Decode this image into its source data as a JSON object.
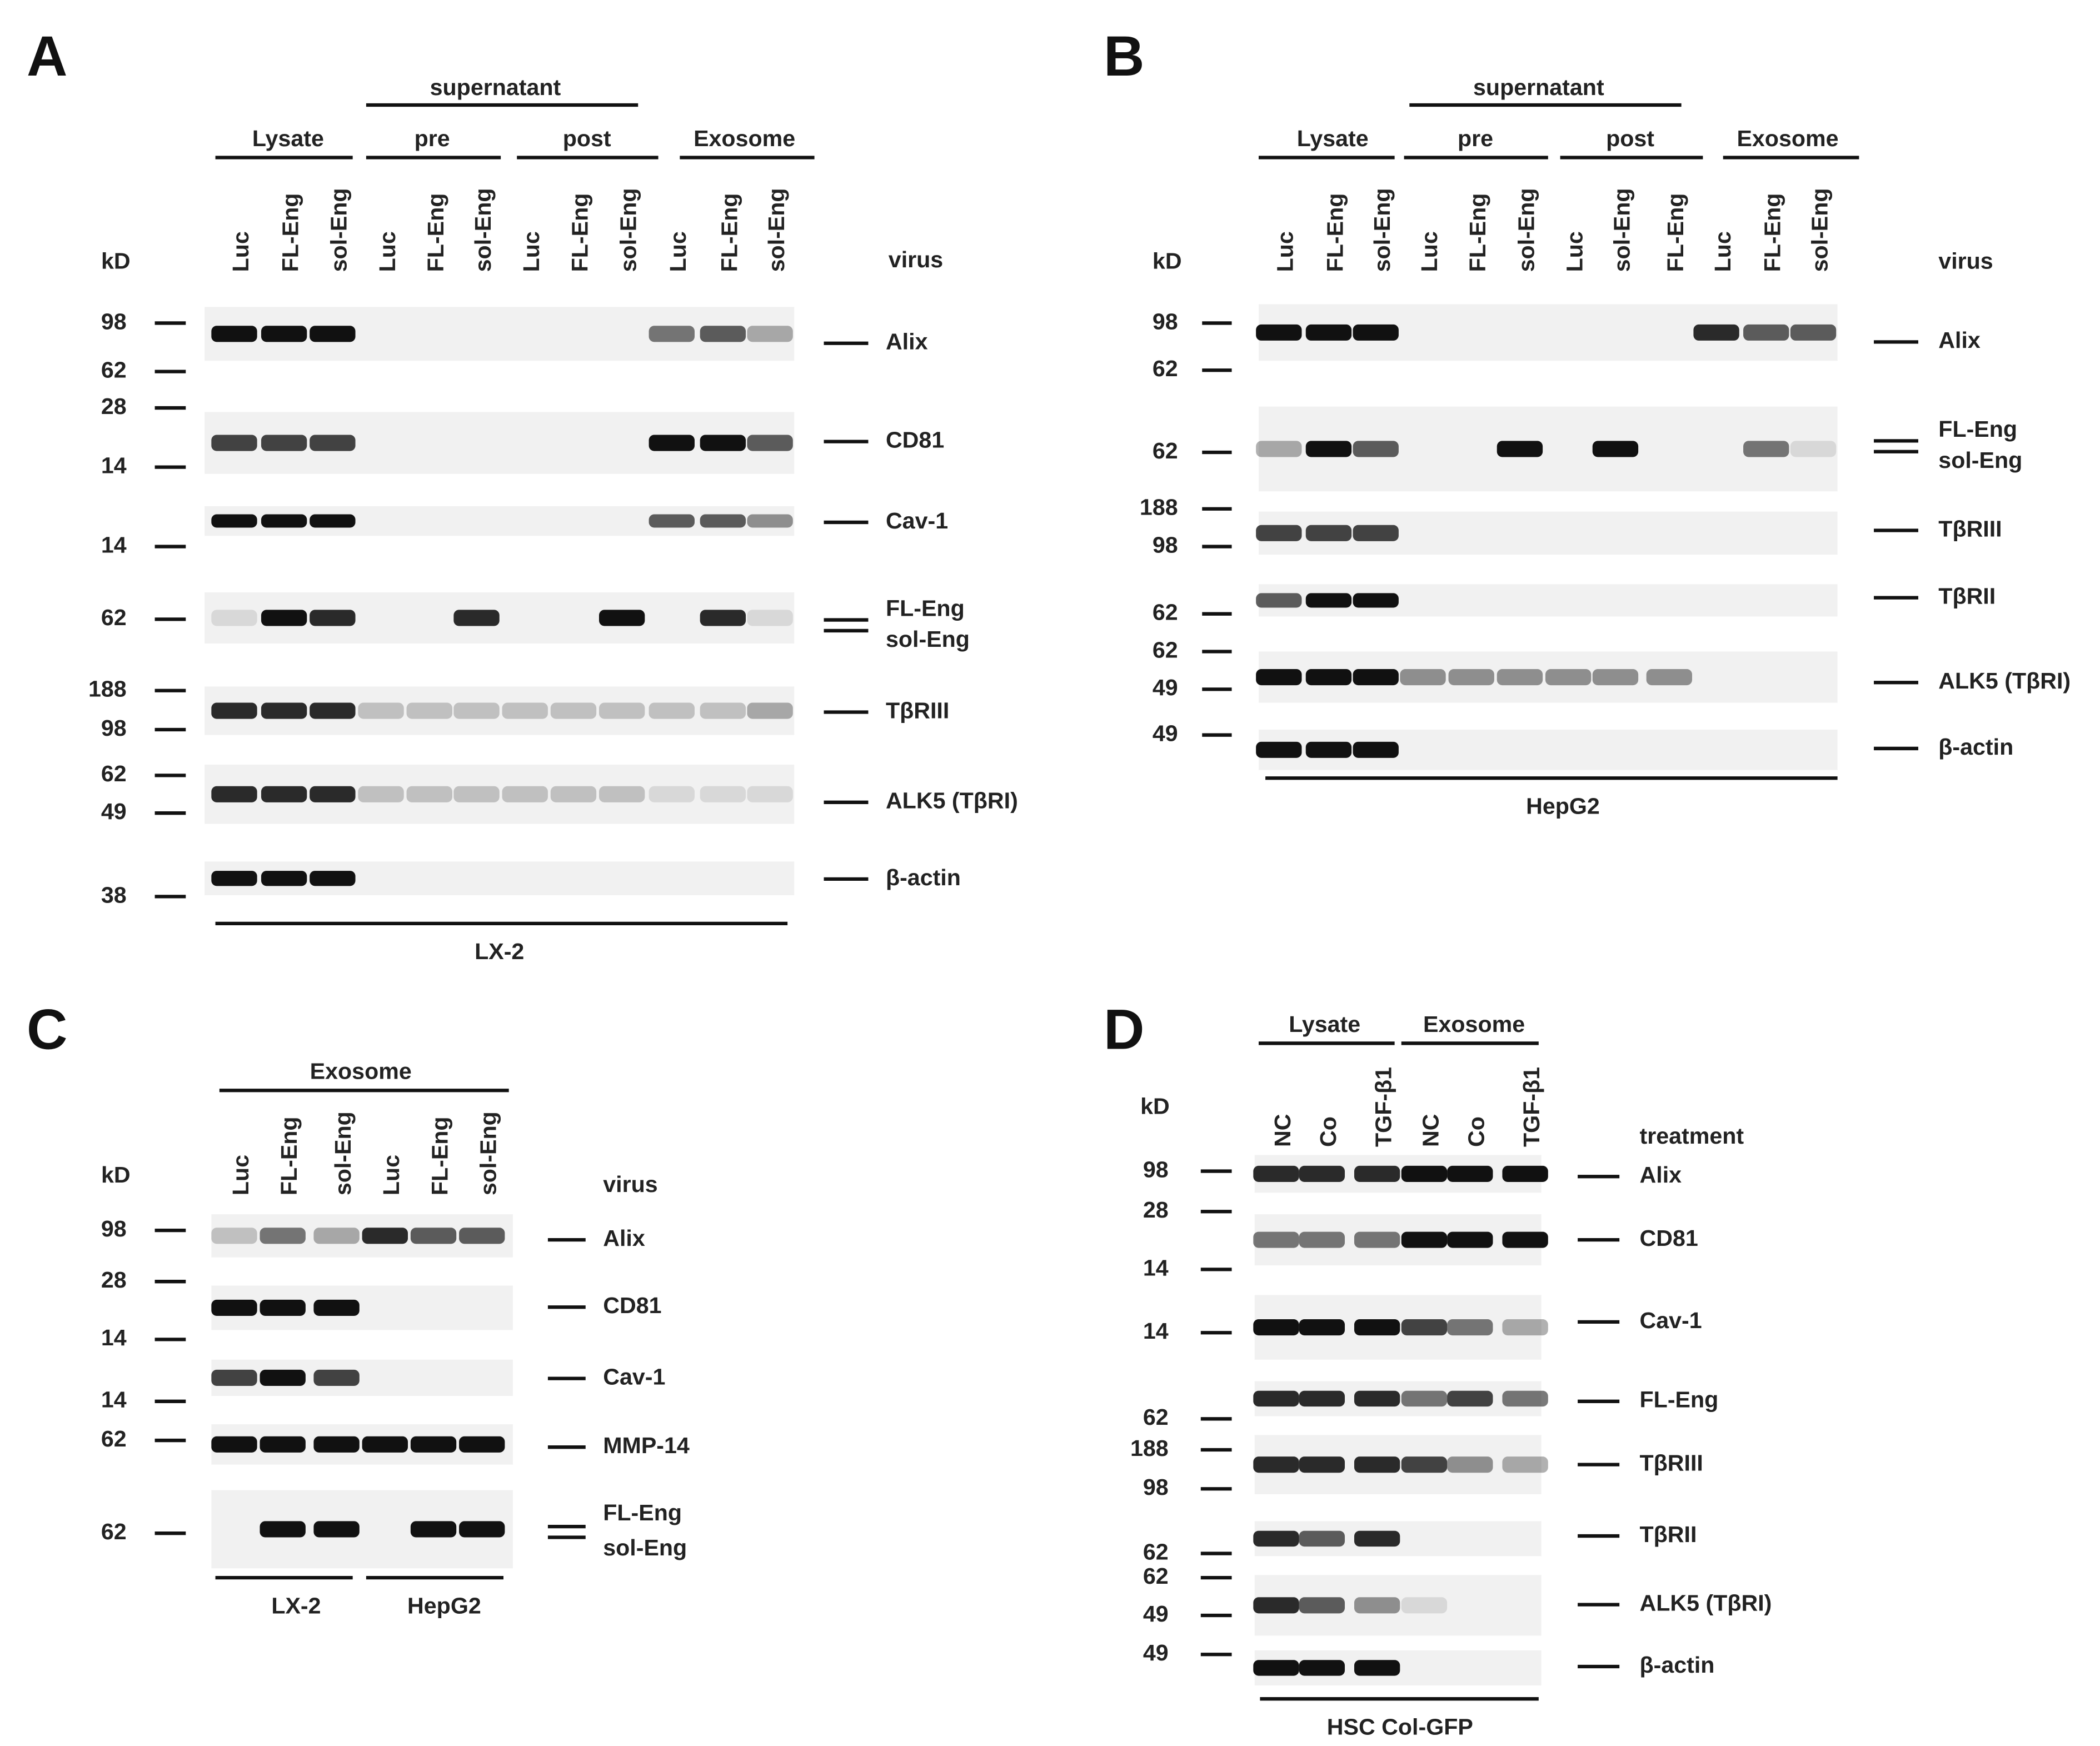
{
  "panels": [
    {
      "label": "A",
      "super_header": "supernatant",
      "groups": [
        "Lysate",
        "pre",
        "post",
        "Exosome"
      ],
      "kd_header": "kD",
      "lane_caption": "virus",
      "lanes": [
        "Luc",
        "FL-Eng",
        "sol-Eng",
        "Luc",
        "FL-Eng",
        "sol-Eng",
        "Luc",
        "FL-Eng",
        "sol-Eng",
        "Luc",
        "FL-Eng",
        "sol-Eng"
      ],
      "rows": [
        {
          "markers": [
            98,
            62
          ],
          "labels": [
            "Alix"
          ]
        },
        {
          "markers": [
            28,
            14
          ],
          "labels": [
            "CD81"
          ]
        },
        {
          "markers": [
            14
          ],
          "labels": [
            "Cav-1"
          ]
        },
        {
          "markers": [
            62
          ],
          "labels": [
            "FL-Eng",
            "sol-Eng"
          ]
        },
        {
          "markers": [
            188,
            98
          ],
          "labels": [
            "TβRIII"
          ]
        },
        {
          "markers": [
            62,
            49
          ],
          "labels": [
            "ALK5 (TβRI)"
          ]
        },
        {
          "markers": [
            38
          ],
          "labels": [
            "β-actin"
          ]
        }
      ],
      "footers": [
        "LX-2"
      ]
    },
    {
      "label": "B",
      "super_header": "supernatant",
      "groups": [
        "Lysate",
        "pre",
        "post",
        "Exosome"
      ],
      "kd_header": "kD",
      "lane_caption": "virus",
      "lanes": [
        "Luc",
        "FL-Eng",
        "sol-Eng",
        "Luc",
        "FL-Eng",
        "sol-Eng",
        "Luc",
        "sol-Eng",
        "FL-Eng",
        "Luc",
        "FL-Eng",
        "sol-Eng"
      ],
      "rows": [
        {
          "markers": [
            98,
            62
          ],
          "labels": [
            "Alix"
          ]
        },
        {
          "markers": [
            62
          ],
          "labels": [
            "FL-Eng",
            "sol-Eng"
          ]
        },
        {
          "markers": [
            188,
            98
          ],
          "labels": [
            "TβRIII"
          ]
        },
        {
          "markers": [
            62
          ],
          "labels": [
            "TβRII"
          ]
        },
        {
          "markers": [
            62,
            49
          ],
          "labels": [
            "ALK5 (TβRI)"
          ]
        },
        {
          "markers": [
            49
          ],
          "labels": [
            "β-actin"
          ]
        }
      ],
      "footers": [
        "HepG2"
      ]
    },
    {
      "label": "C",
      "groups": [
        "Exosome"
      ],
      "kd_header": "kD",
      "lane_caption": "virus",
      "lanes": [
        "Luc",
        "FL-Eng",
        "sol-Eng",
        "Luc",
        "FL-Eng",
        "sol-Eng"
      ],
      "rows": [
        {
          "markers": [
            98
          ],
          "labels": [
            "Alix"
          ]
        },
        {
          "markers": [
            28,
            14
          ],
          "labels": [
            "CD81"
          ]
        },
        {
          "markers": [
            14
          ],
          "labels": [
            "Cav-1"
          ]
        },
        {
          "markers": [
            62
          ],
          "labels": [
            "MMP-14"
          ]
        },
        {
          "markers": [
            62
          ],
          "labels": [
            "FL-Eng",
            "sol-Eng"
          ]
        }
      ],
      "footers": [
        "LX-2",
        "HepG2"
      ]
    },
    {
      "label": "D",
      "groups": [
        "Lysate",
        "Exosome"
      ],
      "kd_header": "kD",
      "lane_caption": "treatment",
      "lanes": [
        "NC",
        "Co",
        "TGF-β1",
        "NC",
        "Co",
        "TGF-β1"
      ],
      "rows": [
        {
          "markers": [
            98
          ],
          "labels": [
            "Alix"
          ]
        },
        {
          "markers": [
            28,
            14
          ],
          "labels": [
            "CD81"
          ]
        },
        {
          "markers": [
            14
          ],
          "labels": [
            "Cav-1"
          ]
        },
        {
          "markers": [
            62
          ],
          "labels": [
            "FL-Eng"
          ]
        },
        {
          "markers": [
            188,
            98
          ],
          "labels": [
            "TβRIII"
          ]
        },
        {
          "markers": [
            62
          ],
          "labels": [
            "TβRII"
          ]
        },
        {
          "markers": [
            62,
            49
          ],
          "labels": [
            "ALK5 (TβRI)"
          ]
        },
        {
          "markers": [
            49
          ],
          "labels": [
            "β-actin"
          ]
        }
      ],
      "footers": [
        "HSC Col-GFP"
      ]
    }
  ]
}
